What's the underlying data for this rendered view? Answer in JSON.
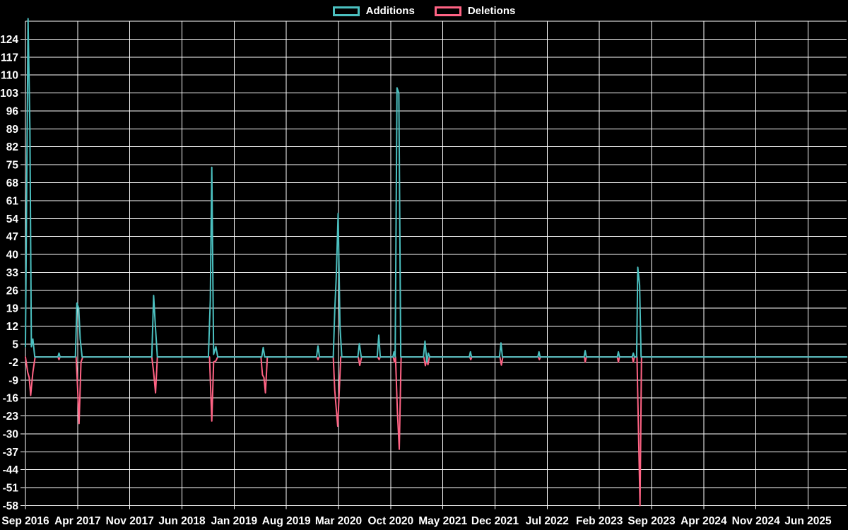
{
  "chart_data": {
    "type": "line",
    "title": "",
    "background_color": "#000000",
    "grid": true,
    "grid_color": "#ffffff",
    "label_color": "#ffffff",
    "legend_position": "top-center",
    "x_axis": {
      "unit": "months since Sep 2016",
      "tick_interval_months": 7,
      "tick_labels": [
        "Sep 2016",
        "Apr 2017",
        "Nov 2017",
        "Jun 2018",
        "Jan 2019",
        "Aug 2019",
        "Mar 2020",
        "Oct 2020",
        "May 2021",
        "Dec 2021",
        "Jul 2022",
        "Feb 2023",
        "Sep 2023",
        "Apr 2024",
        "Nov 2024",
        "Jun 2025"
      ],
      "range_months": [
        0,
        110.2
      ]
    },
    "y_axis": {
      "tick_labels": [
        124,
        117,
        110,
        103,
        96,
        89,
        82,
        75,
        68,
        61,
        54,
        47,
        40,
        33,
        26,
        19,
        12,
        5,
        -2,
        -9,
        -16,
        -23,
        -30,
        -37,
        -44,
        -51,
        -58
      ],
      "min": -58,
      "max": 131,
      "tick_step": 7
    },
    "series": [
      {
        "name": "Additions",
        "color": "#4bc0c0",
        "points": [
          [
            0,
            4
          ],
          [
            0.35,
            132
          ],
          [
            0.6,
            89
          ],
          [
            0.8,
            4
          ],
          [
            1.0,
            7
          ],
          [
            1.25,
            0
          ],
          [
            4.35,
            0
          ],
          [
            4.5,
            1.5
          ],
          [
            4.65,
            0
          ],
          [
            6.7,
            0
          ],
          [
            6.9,
            21
          ],
          [
            7.15,
            19
          ],
          [
            7.35,
            7
          ],
          [
            7.6,
            0
          ],
          [
            16.95,
            0
          ],
          [
            17.2,
            24
          ],
          [
            17.45,
            11
          ],
          [
            17.7,
            0
          ],
          [
            24.55,
            0
          ],
          [
            24.8,
            22
          ],
          [
            25.0,
            74
          ],
          [
            25.25,
            1
          ],
          [
            25.55,
            4
          ],
          [
            25.8,
            0
          ],
          [
            31.7,
            0
          ],
          [
            31.9,
            3.7
          ],
          [
            32.1,
            0
          ],
          [
            39.05,
            0
          ],
          [
            39.25,
            4.3
          ],
          [
            39.45,
            0
          ],
          [
            41.3,
            0
          ],
          [
            41.5,
            18
          ],
          [
            41.7,
            31
          ],
          [
            41.95,
            56
          ],
          [
            42.2,
            12
          ],
          [
            42.45,
            0
          ],
          [
            44.6,
            0
          ],
          [
            44.8,
            5.2
          ],
          [
            45.05,
            0
          ],
          [
            47.2,
            0
          ],
          [
            47.4,
            8.5
          ],
          [
            47.6,
            0
          ],
          [
            49.3,
            0
          ],
          [
            49.45,
            2
          ],
          [
            49.6,
            0
          ],
          [
            49.85,
            105
          ],
          [
            50.1,
            103
          ],
          [
            50.35,
            0
          ],
          [
            53.4,
            0
          ],
          [
            53.6,
            6.2
          ],
          [
            53.85,
            -2
          ],
          [
            54.05,
            1.5
          ],
          [
            54.25,
            0
          ],
          [
            59.55,
            0
          ],
          [
            59.7,
            2
          ],
          [
            59.85,
            0
          ],
          [
            63.6,
            0
          ],
          [
            63.8,
            5.5
          ],
          [
            64.0,
            0
          ],
          [
            68.75,
            0
          ],
          [
            68.9,
            2
          ],
          [
            69.05,
            0
          ],
          [
            74.95,
            0
          ],
          [
            75.1,
            2.5
          ],
          [
            75.25,
            0
          ],
          [
            79.4,
            0
          ],
          [
            79.55,
            2
          ],
          [
            79.7,
            0
          ],
          [
            81.4,
            0
          ],
          [
            81.55,
            1.5
          ],
          [
            81.7,
            0
          ],
          [
            82.0,
            0
          ],
          [
            82.15,
            35
          ],
          [
            82.4,
            28
          ],
          [
            82.6,
            0
          ],
          [
            110.2,
            0
          ]
        ]
      },
      {
        "name": "Deletions",
        "color": "#ff6384",
        "points": [
          [
            0,
            0
          ],
          [
            0.3,
            -6
          ],
          [
            0.5,
            -8
          ],
          [
            0.7,
            -15
          ],
          [
            1.0,
            -6
          ],
          [
            1.3,
            0
          ],
          [
            4.35,
            0
          ],
          [
            4.5,
            -1
          ],
          [
            4.65,
            0
          ],
          [
            6.8,
            0
          ],
          [
            7.0,
            -12
          ],
          [
            7.2,
            -26
          ],
          [
            7.45,
            -2
          ],
          [
            7.7,
            0
          ],
          [
            16.95,
            0
          ],
          [
            17.2,
            -6
          ],
          [
            17.45,
            -14
          ],
          [
            17.7,
            0
          ],
          [
            24.7,
            0
          ],
          [
            25.0,
            -25
          ],
          [
            25.25,
            -2
          ],
          [
            25.55,
            -1.5
          ],
          [
            25.8,
            0
          ],
          [
            31.6,
            0
          ],
          [
            31.8,
            -7
          ],
          [
            32.0,
            -8
          ],
          [
            32.2,
            -14
          ],
          [
            32.45,
            0
          ],
          [
            39.1,
            0
          ],
          [
            39.25,
            -1
          ],
          [
            39.4,
            0
          ],
          [
            41.3,
            0
          ],
          [
            41.5,
            -13
          ],
          [
            41.9,
            -27
          ],
          [
            42.3,
            0
          ],
          [
            44.65,
            0
          ],
          [
            44.85,
            -3.3
          ],
          [
            45.1,
            0
          ],
          [
            47.25,
            0
          ],
          [
            47.45,
            -1
          ],
          [
            47.6,
            0
          ],
          [
            49.35,
            0
          ],
          [
            49.5,
            -2
          ],
          [
            49.65,
            0
          ],
          [
            49.9,
            -21
          ],
          [
            50.15,
            -36
          ],
          [
            50.4,
            0
          ],
          [
            53.45,
            0
          ],
          [
            53.65,
            -3.4
          ],
          [
            53.85,
            -1
          ],
          [
            54.0,
            -3
          ],
          [
            54.2,
            0
          ],
          [
            59.6,
            0
          ],
          [
            59.75,
            -1
          ],
          [
            59.9,
            0
          ],
          [
            63.65,
            0
          ],
          [
            63.85,
            -3.2
          ],
          [
            64.05,
            0
          ],
          [
            68.8,
            0
          ],
          [
            68.95,
            -1
          ],
          [
            69.1,
            0
          ],
          [
            75.0,
            0
          ],
          [
            75.1,
            -2
          ],
          [
            75.25,
            0
          ],
          [
            79.4,
            0
          ],
          [
            79.55,
            -2
          ],
          [
            79.7,
            0
          ],
          [
            81.4,
            0
          ],
          [
            81.55,
            -2
          ],
          [
            81.7,
            0
          ],
          [
            82.05,
            0
          ],
          [
            82.2,
            -22
          ],
          [
            82.45,
            -58
          ],
          [
            82.65,
            0
          ],
          [
            110.2,
            0
          ]
        ]
      }
    ]
  }
}
